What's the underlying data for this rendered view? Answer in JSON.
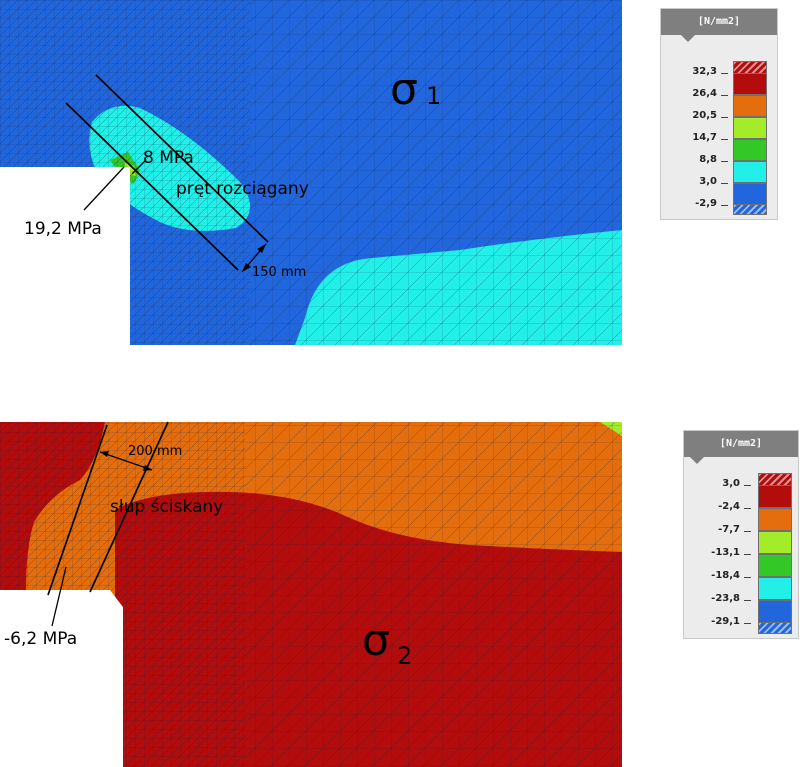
{
  "colors": {
    "dark_red": "#b30c0c",
    "orange": "#e46e0d",
    "yellow_green": "#a4ec2a",
    "green": "#33c828",
    "cyan": "#22f0e8",
    "blue": "#2266dd",
    "mesh_line": "#0d2040"
  },
  "top_panel": {
    "symbol": "σ",
    "subscript": "1",
    "callouts": {
      "value_a": "8 MPa",
      "value_b": "19,2 MPa",
      "member": "pręt rozciągany",
      "width": "150 mm"
    },
    "legend": {
      "unit": "[N/mm2]",
      "values": [
        "32,3",
        "26,4",
        "20,5",
        "14,7",
        "8,8",
        "3,0",
        "-2,9"
      ],
      "swatches": [
        "#b30c0c",
        "#e46e0d",
        "#a4ec2a",
        "#33c828",
        "#22f0e8",
        "#2266dd"
      ]
    }
  },
  "bottom_panel": {
    "symbol": "σ",
    "subscript": "2",
    "callouts": {
      "value_a": "-6,2 MPa",
      "member": "słup ściskany",
      "width": "200 mm"
    },
    "legend": {
      "unit": "[N/mm2]",
      "values": [
        "3,0",
        "-2,4",
        "-7,7",
        "-13,1",
        "-18,4",
        "-23,8",
        "-29,1"
      ],
      "swatches": [
        "#b30c0c",
        "#e46e0d",
        "#a4ec2a",
        "#33c828",
        "#22f0e8",
        "#2266dd"
      ]
    }
  }
}
